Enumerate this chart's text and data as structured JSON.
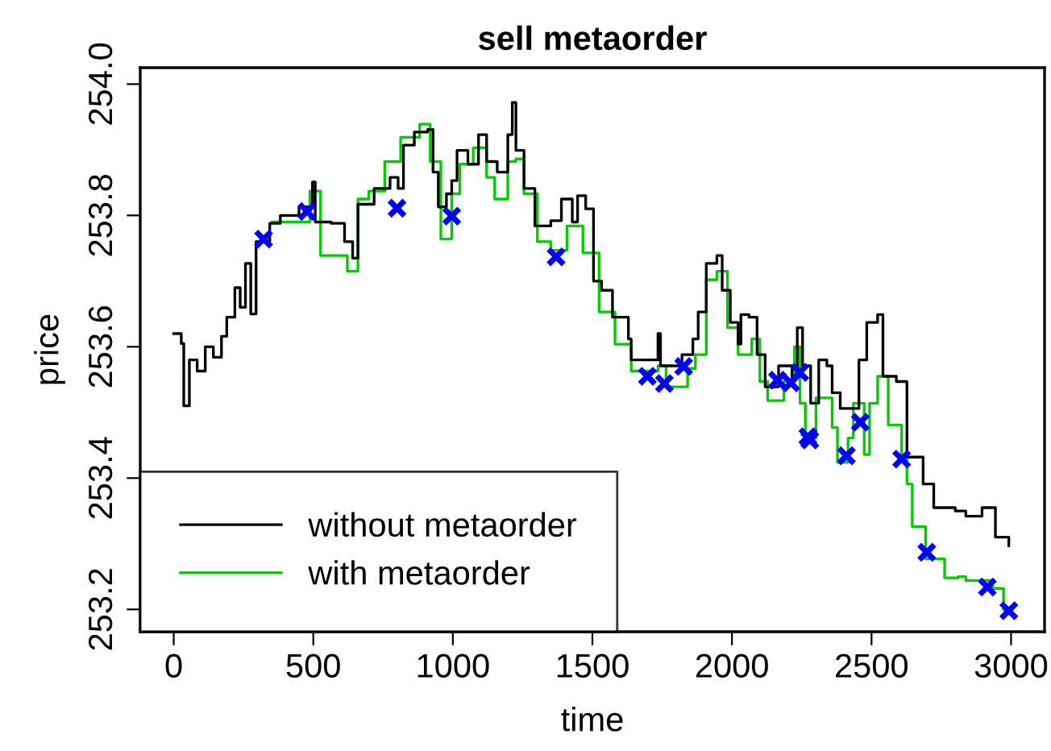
{
  "chart_data": {
    "type": "step",
    "title": "sell metaorder",
    "xlabel": "time",
    "ylabel": "price",
    "xlim": [
      -120,
      3120
    ],
    "ylim": [
      253.166,
      254.025
    ],
    "xticks": [
      0,
      500,
      1000,
      1500,
      2000,
      2500,
      3000
    ],
    "yticks": [
      {
        "value": 253.2,
        "label": "253.2"
      },
      {
        "value": 253.4,
        "label": "253.4"
      },
      {
        "value": 253.6,
        "label": "253.6"
      },
      {
        "value": 253.8,
        "label": "253.8"
      },
      {
        "value": 254.0,
        "label": "254.0"
      }
    ],
    "grid": false,
    "legend": "bottom left",
    "line_style": "solid",
    "series": [
      {
        "name": "without metaorder",
        "color": "#000000",
        "x": [
          0,
          27,
          36,
          56,
          84,
          113,
          142,
          171,
          190,
          219,
          238,
          257,
          276,
          295,
          344,
          382,
          449,
          497,
          507,
          564,
          612,
          641,
          660,
          718,
          775,
          804,
          823,
          862,
          910,
          929,
          948,
          977,
          996,
          1015,
          1054,
          1092,
          1121,
          1159,
          1197,
          1213,
          1226,
          1255,
          1294,
          1351,
          1389,
          1428,
          1447,
          1476,
          1504,
          1533,
          1572,
          1629,
          1639,
          1706,
          1735,
          1744,
          1821,
          1860,
          1879,
          1908,
          1946,
          1965,
          1994,
          2022,
          2032,
          2061,
          2090,
          2119,
          2167,
          2215,
          2234,
          2253,
          2282,
          2311,
          2340,
          2359,
          2388,
          2416,
          2455,
          2483,
          2522,
          2541,
          2589,
          2627,
          2685,
          2723,
          2800,
          2838,
          2896,
          2944,
          2992
        ],
        "values": [
          253.62,
          253.605,
          253.51,
          253.58,
          253.563,
          253.6,
          253.584,
          253.616,
          253.645,
          253.69,
          253.66,
          253.727,
          253.65,
          253.76,
          253.788,
          253.8,
          253.813,
          253.851,
          253.79,
          253.788,
          253.76,
          253.735,
          253.817,
          253.841,
          253.858,
          253.841,
          253.907,
          253.927,
          253.931,
          253.866,
          253.813,
          253.833,
          253.853,
          253.899,
          253.878,
          253.923,
          253.882,
          253.866,
          253.923,
          253.972,
          253.899,
          253.841,
          253.784,
          253.792,
          253.825,
          253.79,
          253.83,
          253.81,
          253.7,
          253.686,
          253.645,
          253.612,
          253.58,
          253.58,
          253.62,
          253.571,
          253.588,
          253.612,
          253.653,
          253.727,
          253.739,
          253.686,
          253.637,
          253.604,
          253.649,
          253.645,
          253.588,
          253.539,
          253.571,
          253.555,
          253.629,
          253.571,
          253.514,
          253.58,
          253.571,
          253.53,
          253.506,
          253.506,
          253.58,
          253.637,
          253.649,
          253.555,
          253.547,
          253.432,
          253.391,
          253.355,
          253.35,
          253.342,
          253.355,
          253.31,
          253.297
        ]
      },
      {
        "name": "with metaorder",
        "color": "#00cc00",
        "x": [
          353,
          488,
          526,
          622,
          660,
          699,
          756,
          813,
          881,
          919,
          957,
          996,
          1025,
          1073,
          1121,
          1150,
          1197,
          1226,
          1255,
          1303,
          1351,
          1409,
          1466,
          1524,
          1552,
          1581,
          1639,
          1735,
          1764,
          1841,
          1869,
          1908,
          1946,
          1984,
          2022,
          2071,
          2100,
          2128,
          2186,
          2224,
          2244,
          2263,
          2301,
          2359,
          2378,
          2416,
          2435,
          2474,
          2493,
          2522,
          2560,
          2608,
          2627,
          2646,
          2694,
          2762,
          2810,
          2838,
          2886,
          2934,
          2973,
          2992
        ],
        "values": [
          253.79,
          253.837,
          253.739,
          253.715,
          253.825,
          253.837,
          253.882,
          253.919,
          253.939,
          253.882,
          253.764,
          253.833,
          253.878,
          253.903,
          253.858,
          253.825,
          253.882,
          253.886,
          253.833,
          253.76,
          253.747,
          253.784,
          253.743,
          253.653,
          253.653,
          253.604,
          253.563,
          253.571,
          253.539,
          253.567,
          253.588,
          253.702,
          253.715,
          253.629,
          253.588,
          253.612,
          253.547,
          253.518,
          253.547,
          253.6,
          253.514,
          253.461,
          253.522,
          253.477,
          253.424,
          253.461,
          253.514,
          253.436,
          253.514,
          253.555,
          253.481,
          253.432,
          253.391,
          253.326,
          253.277,
          253.248,
          253.25,
          253.244,
          253.244,
          253.232,
          253.199,
          253.199
        ]
      },
      {
        "type": "scatter",
        "marker": "cross",
        "color": "#0000ff",
        "x": [
          322,
          478,
          800,
          996,
          1370,
          1697,
          1758,
          1827,
          2163,
          2211,
          2243,
          2272,
          2279,
          2410,
          2460,
          2608,
          2698,
          2915,
          2992
        ],
        "values": [
          253.764,
          253.806,
          253.811,
          253.799,
          253.737,
          253.555,
          253.544,
          253.57,
          253.549,
          253.545,
          253.561,
          253.463,
          253.458,
          253.434,
          253.485,
          253.429,
          253.287,
          253.234,
          253.198
        ]
      }
    ]
  }
}
